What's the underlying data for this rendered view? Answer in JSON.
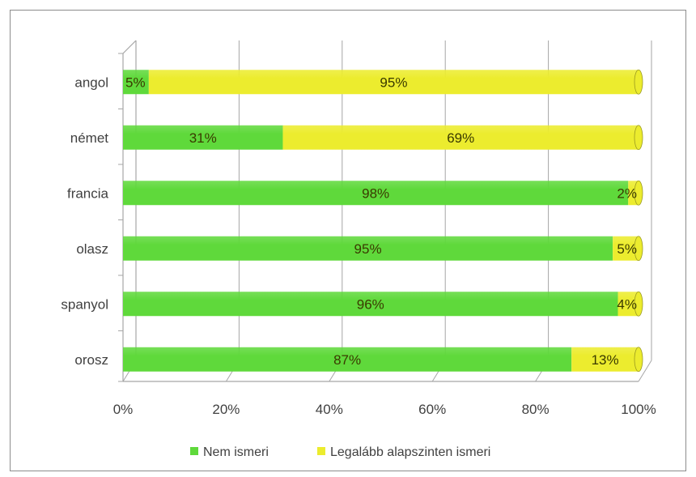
{
  "chart_data": {
    "type": "bar",
    "orientation": "horizontal",
    "stacked": true,
    "percent_stacked": true,
    "categories": [
      "angol",
      "német",
      "francia",
      "olasz",
      "spanyol",
      "orosz"
    ],
    "series": [
      {
        "name": "Nem ismeri",
        "values": [
          5,
          31,
          98,
          95,
          96,
          87
        ],
        "labels": [
          "5%",
          "31%",
          "98%",
          "95%",
          "96%",
          "87%"
        ]
      },
      {
        "name": "Legalább alapszinten ismeri",
        "values": [
          95,
          69,
          2,
          5,
          4,
          13
        ],
        "labels": [
          "95%",
          "69%",
          "2%",
          "5%",
          "4%",
          "13%"
        ]
      }
    ],
    "x_ticks": [
      "0%",
      "20%",
      "40%",
      "60%",
      "80%",
      "100%"
    ],
    "xlim": [
      0,
      100
    ],
    "grid": true,
    "legend_position": "bottom",
    "style_3d": true
  },
  "colors": {
    "Nem ismeri": "#5fd93b",
    "Legalább alapszinten ismeri": "#ecec2e",
    "grid": "#a6a6a6",
    "frame": "#8c8c8c"
  }
}
